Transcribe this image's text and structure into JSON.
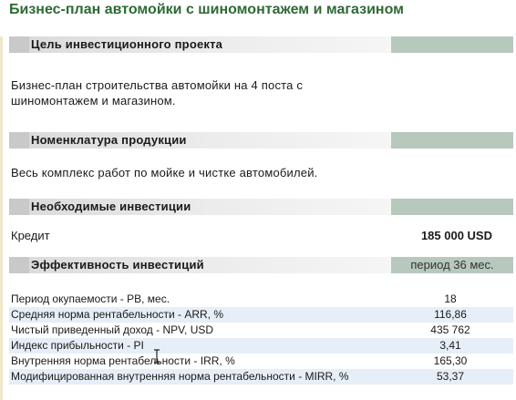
{
  "title": "Бизнес-план автомойки с шиномонтажем и магазином",
  "sections": {
    "goal": {
      "heading": "Цель инвестиционного проекта",
      "text_line1": "Бизнес-план строительства автомойки на 4 поста с",
      "text_line2": "шиномонтажем и магазином."
    },
    "products": {
      "heading": "Номенклатура продукции",
      "text": "Весь комплекс работ по мойке и чистке автомобилей."
    },
    "investment": {
      "heading": "Необходимые инвестиции",
      "credit_label": "Кредит",
      "credit_value": "185 000 USD"
    },
    "efficiency": {
      "heading": "Эффективность инвестиций",
      "period": "период 36 мес."
    }
  },
  "metrics": [
    {
      "name": "Период окупаемости - PB, мес.",
      "value": "18"
    },
    {
      "name": "Средняя норма рентабельности - ARR, %",
      "value": "116,86"
    },
    {
      "name": "Чистый приведенный доход - NPV, USD",
      "value": "435 762"
    },
    {
      "name": "Индекс прибыльности - PI",
      "value": "3,41"
    },
    {
      "name": "Внутренняя норма рентабельности - IRR, %",
      "value": "165,30"
    },
    {
      "name": "Модифицированная внутренняя норма рентабельности - MIRR, %",
      "value": "53,37"
    }
  ],
  "colors": {
    "title": "#2e6a35",
    "section_right": "#b7c9bd",
    "row_alt": "#e6eef7"
  }
}
